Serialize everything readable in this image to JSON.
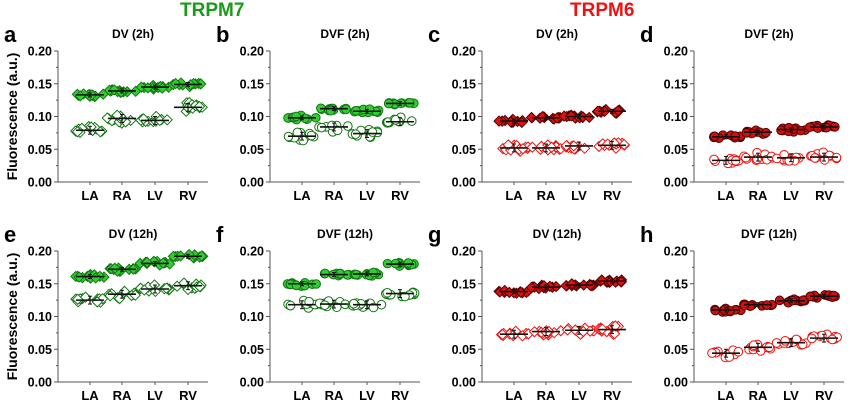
{
  "figure": {
    "groups": [
      {
        "label": "TRPM7",
        "color": "#1a9a1a"
      },
      {
        "label": "TRPM6",
        "color": "#ee1111"
      }
    ],
    "ylabel": "Fluorescence (a.u.)"
  },
  "chart_data": [
    {
      "type": "scatter",
      "panel": "a",
      "group": "TRPM7",
      "title": "DV (2h)",
      "categories": [
        "LA",
        "RA",
        "LV",
        "RV"
      ],
      "yticks": [
        "0.00",
        "0.05",
        "0.10",
        "0.15",
        "0.20"
      ],
      "ylim": [
        0,
        0.2
      ],
      "xlabel": "",
      "ylabel": "Fluorescence (a.u.)",
      "marker": "diamond",
      "series": [
        {
          "name": "filled",
          "fill": "#33cc33",
          "edge": "#117711",
          "values": [
            0.133,
            0.139,
            0.145,
            0.149
          ]
        },
        {
          "name": "open",
          "fill": "#ffffff",
          "edge": "#117711",
          "values": [
            0.079,
            0.097,
            0.094,
            0.114
          ]
        }
      ]
    },
    {
      "type": "scatter",
      "panel": "b",
      "group": "TRPM7",
      "title": "DVF (2h)",
      "categories": [
        "LA",
        "RA",
        "LV",
        "RV"
      ],
      "yticks": [
        "0.00",
        "0.05",
        "0.10",
        "0.15",
        "0.20"
      ],
      "ylim": [
        0,
        0.2
      ],
      "xlabel": "",
      "ylabel": "",
      "marker": "circle",
      "series": [
        {
          "name": "filled",
          "fill": "#33cc33",
          "edge": "#117711",
          "values": [
            0.098,
            0.112,
            0.108,
            0.12
          ]
        },
        {
          "name": "open",
          "fill": "#ffffff",
          "edge": "#117711",
          "values": [
            0.07,
            0.084,
            0.074,
            0.092
          ]
        }
      ]
    },
    {
      "type": "scatter",
      "panel": "c",
      "group": "TRPM6",
      "title": "DV (2h)",
      "categories": [
        "LA",
        "RA",
        "LV",
        "RV"
      ],
      "yticks": [
        "0.00",
        "0.05",
        "0.10",
        "0.15",
        "0.20"
      ],
      "ylim": [
        0,
        0.2
      ],
      "xlabel": "",
      "ylabel": "",
      "marker": "diamond",
      "series": [
        {
          "name": "filled",
          "fill": "#dd1111",
          "edge": "#550000",
          "values": [
            0.093,
            0.098,
            0.1,
            0.108
          ]
        },
        {
          "name": "open",
          "fill": "#ffffff",
          "edge": "#ee1111",
          "values": [
            0.052,
            0.052,
            0.055,
            0.056
          ]
        }
      ]
    },
    {
      "type": "scatter",
      "panel": "d",
      "group": "TRPM6",
      "title": "DVF (2h)",
      "categories": [
        "LA",
        "RA",
        "LV",
        "RV"
      ],
      "yticks": [
        "0.00",
        "0.05",
        "0.10",
        "0.15",
        "0.20"
      ],
      "ylim": [
        0,
        0.2
      ],
      "xlabel": "",
      "ylabel": "",
      "marker": "circle",
      "series": [
        {
          "name": "filled",
          "fill": "#cc1111",
          "edge": "#550000",
          "values": [
            0.069,
            0.076,
            0.08,
            0.084
          ]
        },
        {
          "name": "open",
          "fill": "#ffffff",
          "edge": "#ee1111",
          "values": [
            0.033,
            0.038,
            0.037,
            0.038
          ]
        }
      ]
    },
    {
      "type": "scatter",
      "panel": "e",
      "group": "TRPM7",
      "title": "DV (12h)",
      "categories": [
        "LA",
        "RA",
        "LV",
        "RV"
      ],
      "yticks": [
        "0.00",
        "0.05",
        "0.10",
        "0.15",
        "0.20"
      ],
      "ylim": [
        0,
        0.2
      ],
      "xlabel": "",
      "ylabel": "Fluorescence (a.u.)",
      "marker": "diamond",
      "series": [
        {
          "name": "filled",
          "fill": "#33cc33",
          "edge": "#117711",
          "values": [
            0.161,
            0.172,
            0.181,
            0.192
          ]
        },
        {
          "name": "open",
          "fill": "#ffffff",
          "edge": "#117711",
          "values": [
            0.125,
            0.134,
            0.142,
            0.147
          ]
        }
      ]
    },
    {
      "type": "scatter",
      "panel": "f",
      "group": "TRPM7",
      "title": "DVF (12h)",
      "categories": [
        "LA",
        "RA",
        "LV",
        "RV"
      ],
      "yticks": [
        "0.00",
        "0.05",
        "0.10",
        "0.15",
        "0.20"
      ],
      "ylim": [
        0,
        0.2
      ],
      "xlabel": "",
      "ylabel": "",
      "marker": "circle",
      "series": [
        {
          "name": "filled",
          "fill": "#33cc33",
          "edge": "#117711",
          "values": [
            0.15,
            0.164,
            0.165,
            0.18
          ]
        },
        {
          "name": "open",
          "fill": "#ffffff",
          "edge": "#117711",
          "values": [
            0.118,
            0.119,
            0.118,
            0.135
          ]
        }
      ]
    },
    {
      "type": "scatter",
      "panel": "g",
      "group": "TRPM6",
      "title": "DV (12h)",
      "categories": [
        "LA",
        "RA",
        "LV",
        "RV"
      ],
      "yticks": [
        "0.00",
        "0.05",
        "0.10",
        "0.15",
        "0.20"
      ],
      "ylim": [
        0,
        0.2
      ],
      "xlabel": "",
      "ylabel": "",
      "marker": "diamond",
      "series": [
        {
          "name": "filled",
          "fill": "#dd1111",
          "edge": "#550000",
          "values": [
            0.138,
            0.145,
            0.148,
            0.154
          ]
        },
        {
          "name": "open",
          "fill": "#ffffff",
          "edge": "#ee1111",
          "values": [
            0.073,
            0.077,
            0.079,
            0.08
          ]
        }
      ]
    },
    {
      "type": "scatter",
      "panel": "h",
      "group": "TRPM6",
      "title": "DVF (12h)",
      "categories": [
        "LA",
        "RA",
        "LV",
        "RV"
      ],
      "yticks": [
        "0.00",
        "0.05",
        "0.10",
        "0.15",
        "0.20"
      ],
      "ylim": [
        0,
        0.2
      ],
      "xlabel": "",
      "ylabel": "",
      "marker": "circle",
      "series": [
        {
          "name": "filled",
          "fill": "#cc1111",
          "edge": "#550000",
          "values": [
            0.11,
            0.118,
            0.124,
            0.131
          ]
        },
        {
          "name": "open",
          "fill": "#ffffff",
          "edge": "#ee1111",
          "values": [
            0.044,
            0.053,
            0.06,
            0.067
          ]
        }
      ]
    }
  ]
}
